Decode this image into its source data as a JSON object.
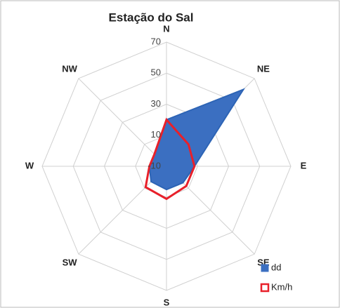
{
  "chart_data": {
    "type": "radar",
    "title": "Estação do Sal",
    "categories": [
      "N",
      "NE",
      "E",
      "SE",
      "S",
      "SW",
      "W",
      "NW"
    ],
    "series": [
      {
        "name": "dd",
        "color": "#3b6fc1",
        "values": [
          20,
          60,
          8,
          5,
          5,
          4,
          1,
          1
        ]
      },
      {
        "name": "Km/h",
        "color": "#e8202a",
        "values": [
          20,
          10,
          8,
          8,
          11,
          9,
          1,
          1
        ]
      }
    ],
    "rlim": [
      -10,
      70
    ],
    "rticks": [
      -10,
      10,
      30,
      50,
      70
    ],
    "grid": true
  }
}
